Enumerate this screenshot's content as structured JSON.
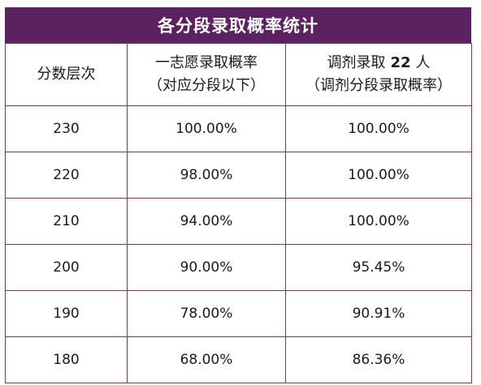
{
  "title": "各分段录取概率统计",
  "headers": {
    "col1": "分数层次",
    "col2_line1": "一志愿录取概率",
    "col2_line2": "（对应分段以下）",
    "col3_line1_pre": "调剂录取",
    "col3_line1_num": "22",
    "col3_line1_post": "人",
    "col3_line2": "（调剂分段录取概率）"
  },
  "rows": [
    {
      "score": "230",
      "first_choice": "100.00%",
      "adjust": "100.00%"
    },
    {
      "score": "220",
      "first_choice": "98.00%",
      "adjust": "100.00%"
    },
    {
      "score": "210",
      "first_choice": "94.00%",
      "adjust": "100.00%"
    },
    {
      "score": "200",
      "first_choice": "90.00%",
      "adjust": "95.45%"
    },
    {
      "score": "190",
      "first_choice": "78.00%",
      "adjust": "90.91%"
    },
    {
      "score": "180",
      "first_choice": "68.00%",
      "adjust": "86.36%"
    }
  ],
  "colors": {
    "title_bg": "#5b2161",
    "border": "#6a3d6e"
  }
}
